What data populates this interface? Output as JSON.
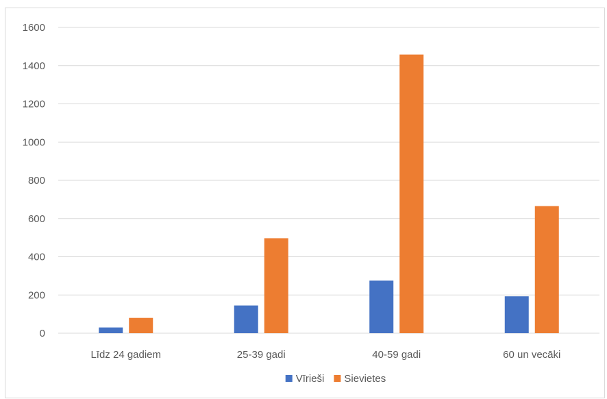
{
  "chart_data": {
    "type": "bar",
    "title": "",
    "xlabel": "",
    "ylabel": "",
    "categories": [
      "Līdz 24 gadiem",
      "25-39 gadi",
      "40-59 gadi",
      "60 un vecāki"
    ],
    "series": [
      {
        "name": "Vīrieši",
        "color": "#4472c4",
        "values": [
          30,
          145,
          275,
          193
        ]
      },
      {
        "name": "Sievietes",
        "color": "#ed7d31",
        "values": [
          80,
          497,
          1458,
          665
        ]
      }
    ],
    "ylim": [
      0,
      1600
    ],
    "yticks": [
      0,
      200,
      400,
      600,
      800,
      1000,
      1200,
      1400,
      1600
    ],
    "grid": true,
    "legend_position": "bottom",
    "colors": {
      "grid": "#d9d9d9",
      "axis": "#d9d9d9",
      "text": "#595959"
    }
  }
}
